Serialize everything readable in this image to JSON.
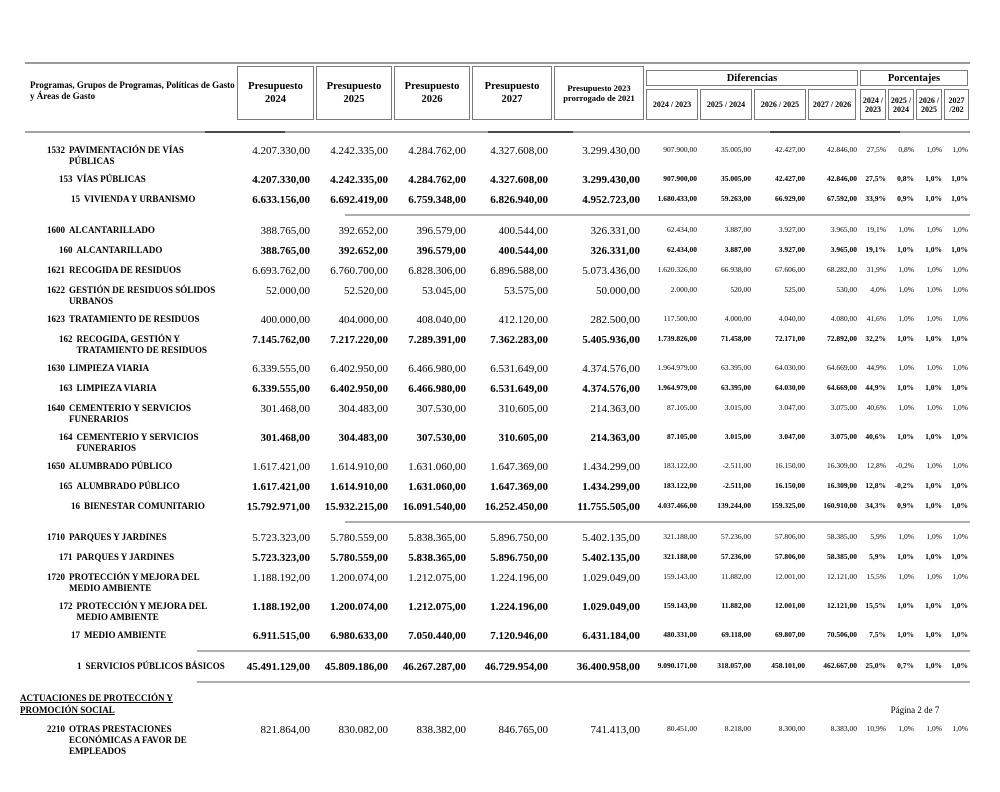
{
  "header": {
    "row_label": "Programas, Grupos de Programas, Políticas de Gasto y Áreas de Gasto",
    "budget_columns": [
      "Presupuesto 2024",
      "Presupuesto 2025",
      "Presupuesto 2026",
      "Presupuesto 2027",
      "Presupuesto 2023 prorrogado de 2021"
    ],
    "diferencias_label": "Diferencias",
    "porcentajes_label": "Porcentajes",
    "diferencias_columns": [
      "2024 / 2023",
      "2025 / 2024",
      "2026 / 2025",
      "2027 / 2026"
    ],
    "porcentajes_columns": [
      "2024 / 2023",
      "2025 / 2024",
      "2026 / 2025",
      "2027 /202"
    ]
  },
  "rows": [
    {
      "level": "program",
      "code": "1532",
      "name": "PAVIMENTACIÓN DE VÍAS PÚBLICAS",
      "bold": false,
      "values": [
        "4.207.330,00",
        "4.242.335,00",
        "4.284.762,00",
        "4.327.608,00",
        "3.299.430,00"
      ],
      "diffs": [
        "907.900,00",
        "35.005,00",
        "42.427,00",
        "42.846,00"
      ],
      "pcts": [
        "27,5%",
        "0,8%",
        "1,0%",
        "1,0%"
      ]
    },
    {
      "level": "group",
      "code": "153",
      "name": "VÍAS PÚBLICAS",
      "bold": true,
      "values": [
        "4.207.330,00",
        "4.242.335,00",
        "4.284.762,00",
        "4.327.608,00",
        "3.299.430,00"
      ],
      "diffs": [
        "907.900,00",
        "35.005,00",
        "42.427,00",
        "42.846,00"
      ],
      "pcts": [
        "27,5%",
        "0,8%",
        "1,0%",
        "1,0%"
      ]
    },
    {
      "level": "policy",
      "code": "15",
      "name": "VIVIENDA Y URBANISMO",
      "bold": true,
      "sep_after": "a",
      "values": [
        "6.633.156,00",
        "6.692.419,00",
        "6.759.348,00",
        "6.826.940,00",
        "4.952.723,00"
      ],
      "diffs": [
        "1.680.433,00",
        "59.263,00",
        "66.929,00",
        "67.592,00"
      ],
      "pcts": [
        "33,9%",
        "0,9%",
        "1,0%",
        "1,0%"
      ]
    },
    {
      "level": "program",
      "code": "1600",
      "name": "ALCANTARILLADO",
      "bold": false,
      "values": [
        "388.765,00",
        "392.652,00",
        "396.579,00",
        "400.544,00",
        "326.331,00"
      ],
      "diffs": [
        "62.434,00",
        "3.887,00",
        "3.927,00",
        "3.965,00"
      ],
      "pcts": [
        "19,1%",
        "1,0%",
        "1,0%",
        "1,0%"
      ]
    },
    {
      "level": "group",
      "code": "160",
      "name": "ALCANTARILLADO",
      "bold": true,
      "values": [
        "388.765,00",
        "392.652,00",
        "396.579,00",
        "400.544,00",
        "326.331,00"
      ],
      "diffs": [
        "62.434,00",
        "3.887,00",
        "3.927,00",
        "3.965,00"
      ],
      "pcts": [
        "19,1%",
        "1,0%",
        "1,0%",
        "1,0%"
      ]
    },
    {
      "level": "program",
      "code": "1621",
      "name": "RECOGIDA DE RESIDUOS",
      "bold": false,
      "values": [
        "6.693.762,00",
        "6.760.700,00",
        "6.828.306,00",
        "6.896.588,00",
        "5.073.436,00"
      ],
      "diffs": [
        "1.620.326,00",
        "66.938,00",
        "67.606,00",
        "68.282,00"
      ],
      "pcts": [
        "31,9%",
        "1,0%",
        "1,0%",
        "1,0%"
      ]
    },
    {
      "level": "program",
      "code": "1622",
      "name": "GESTIÓN DE RESIDUOS SÓLIDOS URBANOS",
      "bold": false,
      "values": [
        "52.000,00",
        "52.520,00",
        "53.045,00",
        "53.575,00",
        "50.000,00"
      ],
      "diffs": [
        "2.000,00",
        "520,00",
        "525,00",
        "530,00"
      ],
      "pcts": [
        "4,0%",
        "1,0%",
        "1,0%",
        "1,0%"
      ]
    },
    {
      "level": "program",
      "code": "1623",
      "name": "TRATAMIENTO DE RESIDUOS",
      "bold": false,
      "values": [
        "400.000,00",
        "404.000,00",
        "408.040,00",
        "412.120,00",
        "282.500,00"
      ],
      "diffs": [
        "117.500,00",
        "4.000,00",
        "4.040,00",
        "4.080,00"
      ],
      "pcts": [
        "41,6%",
        "1,0%",
        "1,0%",
        "1,0%"
      ]
    },
    {
      "level": "group",
      "code": "162",
      "name": "RECOGIDA, GESTIÓN  Y TRATAMIENTO DE RESIDUOS",
      "bold": true,
      "values": [
        "7.145.762,00",
        "7.217.220,00",
        "7.289.391,00",
        "7.362.283,00",
        "5.405.936,00"
      ],
      "diffs": [
        "1.739.826,00",
        "71.458,00",
        "72.171,00",
        "72.892,00"
      ],
      "pcts": [
        "32,2%",
        "1,0%",
        "1,0%",
        "1,0%"
      ]
    },
    {
      "level": "program",
      "code": "1630",
      "name": "LIMPIEZA VIARIA",
      "bold": false,
      "values": [
        "6.339.555,00",
        "6.402.950,00",
        "6.466.980,00",
        "6.531.649,00",
        "4.374.576,00"
      ],
      "diffs": [
        "1.964.979,00",
        "63.395,00",
        "64.030,00",
        "64.669,00"
      ],
      "pcts": [
        "44,9%",
        "1,0%",
        "1,0%",
        "1,0%"
      ]
    },
    {
      "level": "group",
      "code": "163",
      "name": "LIMPIEZA VIARIA",
      "bold": true,
      "values": [
        "6.339.555,00",
        "6.402.950,00",
        "6.466.980,00",
        "6.531.649,00",
        "4.374.576,00"
      ],
      "diffs": [
        "1.964.979,00",
        "63.395,00",
        "64.030,00",
        "64.669,00"
      ],
      "pcts": [
        "44,9%",
        "1,0%",
        "1,0%",
        "1,0%"
      ]
    },
    {
      "level": "program",
      "code": "1640",
      "name": "CEMENTERIO Y SERVICIOS FUNERARIOS",
      "bold": false,
      "values": [
        "301.468,00",
        "304.483,00",
        "307.530,00",
        "310.605,00",
        "214.363,00"
      ],
      "diffs": [
        "87.105,00",
        "3.015,00",
        "3.047,00",
        "3.075,00"
      ],
      "pcts": [
        "40,6%",
        "1,0%",
        "1,0%",
        "1,0%"
      ]
    },
    {
      "level": "group",
      "code": "164",
      "name": "CEMENTERIO Y SERVICIOS FUNERARIOS",
      "bold": true,
      "values": [
        "301.468,00",
        "304.483,00",
        "307.530,00",
        "310.605,00",
        "214.363,00"
      ],
      "diffs": [
        "87.105,00",
        "3.015,00",
        "3.047,00",
        "3.075,00"
      ],
      "pcts": [
        "40,6%",
        "1,0%",
        "1,0%",
        "1,0%"
      ]
    },
    {
      "level": "program",
      "code": "1650",
      "name": "ALUMBRADO PÚBLICO",
      "bold": false,
      "values": [
        "1.617.421,00",
        "1.614.910,00",
        "1.631.060,00",
        "1.647.369,00",
        "1.434.299,00"
      ],
      "diffs": [
        "183.122,00",
        "-2.511,00",
        "16.150,00",
        "16.309,00"
      ],
      "pcts": [
        "12,8%",
        "-0,2%",
        "1,0%",
        "1,0%"
      ]
    },
    {
      "level": "group",
      "code": "165",
      "name": "ALUMBRADO PÚBLICO",
      "bold": true,
      "values": [
        "1.617.421,00",
        "1.614.910,00",
        "1.631.060,00",
        "1.647.369,00",
        "1.434.299,00"
      ],
      "diffs": [
        "183.122,00",
        "-2.511,00",
        "16.150,00",
        "16.309,00"
      ],
      "pcts": [
        "12,8%",
        "-0,2%",
        "1,0%",
        "1,0%"
      ]
    },
    {
      "level": "policy",
      "code": "16",
      "name": "BIENESTAR COMUNITARIO",
      "bold": true,
      "sep_after": "a",
      "values": [
        "15.792.971,00",
        "15.932.215,00",
        "16.091.540,00",
        "16.252.450,00",
        "11.755.505,00"
      ],
      "diffs": [
        "4.037.466,00",
        "139.244,00",
        "159.325,00",
        "160.910,00"
      ],
      "pcts": [
        "34,3%",
        "0,9%",
        "1,0%",
        "1,0%"
      ]
    },
    {
      "level": "program",
      "code": "1710",
      "name": "PARQUES Y JARDINES",
      "bold": false,
      "values": [
        "5.723.323,00",
        "5.780.559,00",
        "5.838.365,00",
        "5.896.750,00",
        "5.402.135,00"
      ],
      "diffs": [
        "321.188,00",
        "57.236,00",
        "57.806,00",
        "58.385,00"
      ],
      "pcts": [
        "5,9%",
        "1,0%",
        "1,0%",
        "1,0%"
      ]
    },
    {
      "level": "group",
      "code": "171",
      "name": "PARQUES Y JARDINES",
      "bold": true,
      "values": [
        "5.723.323,00",
        "5.780.559,00",
        "5.838.365,00",
        "5.896.750,00",
        "5.402.135,00"
      ],
      "diffs": [
        "321.188,00",
        "57.236,00",
        "57.806,00",
        "58.385,00"
      ],
      "pcts": [
        "5,9%",
        "1,0%",
        "1,0%",
        "1,0%"
      ]
    },
    {
      "level": "program",
      "code": "1720",
      "name": "PROTECCIÓN Y MEJORA DEL MEDIO AMBIENTE",
      "bold": false,
      "values": [
        "1.188.192,00",
        "1.200.074,00",
        "1.212.075,00",
        "1.224.196,00",
        "1.029.049,00"
      ],
      "diffs": [
        "159.143,00",
        "11.882,00",
        "12.001,00",
        "12.121,00"
      ],
      "pcts": [
        "15,5%",
        "1,0%",
        "1,0%",
        "1,0%"
      ]
    },
    {
      "level": "group",
      "code": "172",
      "name": "PROTECCIÓN Y MEJORA DEL MEDIO AMBIENTE",
      "bold": true,
      "values": [
        "1.188.192,00",
        "1.200.074,00",
        "1.212.075,00",
        "1.224.196,00",
        "1.029.049,00"
      ],
      "diffs": [
        "159.143,00",
        "11.882,00",
        "12.001,00",
        "12.121,00"
      ],
      "pcts": [
        "15,5%",
        "1,0%",
        "1,0%",
        "1,0%"
      ]
    },
    {
      "level": "policy",
      "code": "17",
      "name": "MEDIO AMBIENTE",
      "bold": true,
      "sep_after": "b",
      "values": [
        "6.911.515,00",
        "6.980.633,00",
        "7.050.440,00",
        "7.120.946,00",
        "6.431.184,00"
      ],
      "diffs": [
        "480.331,00",
        "69.118,00",
        "69.807,00",
        "70.506,00"
      ],
      "pcts": [
        "7,5%",
        "1,0%",
        "1,0%",
        "1,0%"
      ]
    },
    {
      "level": "area",
      "code": "1",
      "name": "SERVICIOS PÚBLICOS BÁSICOS",
      "bold": true,
      "sep_after": "b",
      "values": [
        "45.491.129,00",
        "45.809.186,00",
        "46.267.287,00",
        "46.729.954,00",
        "36.400.958,00"
      ],
      "diffs": [
        "9.090.171,00",
        "318.057,00",
        "458.101,00",
        "462.667,00"
      ],
      "pcts": [
        "25,0%",
        "0,7%",
        "1,0%",
        "1,0%"
      ]
    },
    {
      "level": "section",
      "name": "ACTUACIONES DE PROTECCIÓN Y PROMOCIÓN SOCIAL"
    },
    {
      "level": "program",
      "code": "2210",
      "name": "OTRAS PRESTACIONES ECONÓMICAS A FAVOR DE EMPLEADOS",
      "bold": false,
      "values": [
        "821.864,00",
        "830.082,00",
        "838.382,00",
        "846.765,00",
        "741.413,00"
      ],
      "diffs": [
        "80.451,00",
        "8.218,00",
        "8.300,00",
        "8.383,00"
      ],
      "pcts": [
        "10,9%",
        "1,0%",
        "1,0%",
        "1,0%"
      ]
    }
  ],
  "footer": {
    "page_indicator": "Página 2 de  7"
  }
}
